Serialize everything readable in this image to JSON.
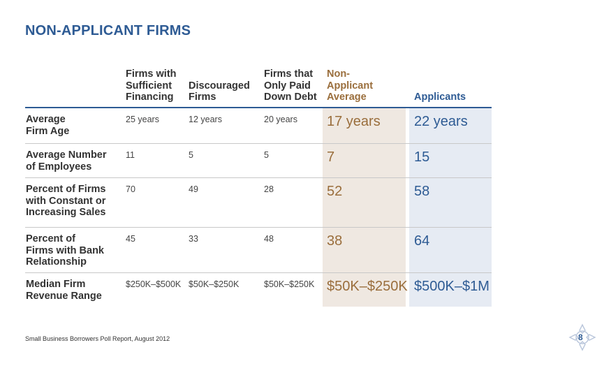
{
  "title": "NON-APPLICANT FIRMS",
  "headers": {
    "h1": [
      "Firms with",
      "Sufficient",
      "Financing"
    ],
    "h2": [
      "Discouraged",
      "Firms"
    ],
    "h3": [
      "Firms that",
      "Only Paid",
      "Down Debt"
    ],
    "h4": [
      "Non-",
      "Applicant",
      "Average"
    ],
    "h5": [
      "Applicants"
    ]
  },
  "rows": [
    {
      "label": [
        "Average",
        "Firm Age"
      ],
      "c1": "25 years",
      "c2": "12 years",
      "c3": "20 years",
      "non": "17 years",
      "app": "22 years"
    },
    {
      "label": [
        "Average Number",
        "of Employees"
      ],
      "c1": "11",
      "c2": "5",
      "c3": "5",
      "non": "7",
      "app": "15"
    },
    {
      "label": [
        "Percent of Firms",
        "with Constant or",
        "Increasing Sales"
      ],
      "c1": "70",
      "c2": "49",
      "c3": "28",
      "non": "52",
      "app": "58"
    },
    {
      "label": [
        "Percent of",
        "Firms with Bank",
        "Relationship"
      ],
      "c1": "45",
      "c2": "33",
      "c3": "48",
      "non": "38",
      "app": "64"
    },
    {
      "label": [
        "Median Firm",
        "Revenue Range"
      ],
      "c1": "$250K–$500K",
      "c2": "$50K–$250K",
      "c3": "$50K–$250K",
      "non": "$50K–$250K",
      "app": "$500K–$1M"
    }
  ],
  "footer": "Small Business Borrowers Poll Report, August 2012",
  "page_number": "8",
  "colors": {
    "title": "#2e5b94",
    "non_applicant": "#9a6e3c",
    "applicants": "#2e5b94",
    "non_shade": "#efe8e1",
    "app_shade": "#e6ebf3"
  }
}
